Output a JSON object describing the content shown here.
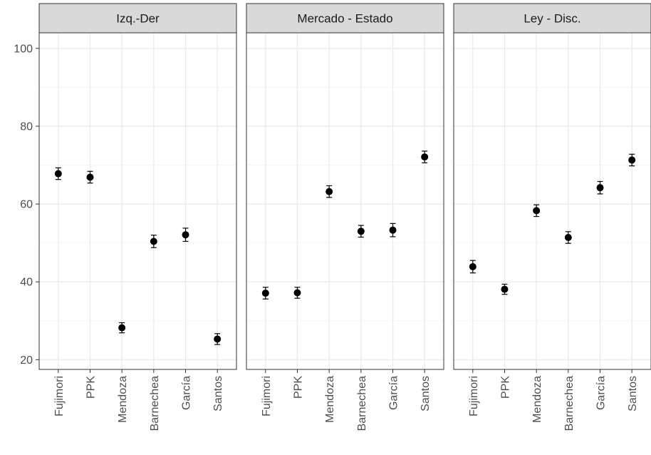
{
  "chart_data": {
    "type": "scatter",
    "error_bars": true,
    "facets": [
      "Izq.-Der",
      "Mercado - Estado",
      "Ley - Disc."
    ],
    "categories": [
      "Fujimori",
      "PPK",
      "Mendoza",
      "Barnechea",
      "García",
      "Santos"
    ],
    "ylim": [
      17.5,
      104
    ],
    "yticks": [
      20,
      40,
      60,
      80,
      100
    ],
    "grid": true,
    "panels": [
      {
        "facet": "Izq.-Der",
        "points": [
          {
            "x": "Fujimori",
            "y": 67.8,
            "lower": 66.3,
            "upper": 69.3
          },
          {
            "x": "PPK",
            "y": 66.9,
            "lower": 65.4,
            "upper": 68.4
          },
          {
            "x": "Mendoza",
            "y": 28.2,
            "lower": 26.9,
            "upper": 29.5
          },
          {
            "x": "Barnechea",
            "y": 50.4,
            "lower": 48.8,
            "upper": 52.0
          },
          {
            "x": "García",
            "y": 52.1,
            "lower": 50.4,
            "upper": 53.8
          },
          {
            "x": "Santos",
            "y": 25.3,
            "lower": 23.9,
            "upper": 26.7
          }
        ]
      },
      {
        "facet": "Mercado - Estado",
        "points": [
          {
            "x": "Fujimori",
            "y": 37.1,
            "lower": 35.6,
            "upper": 38.6
          },
          {
            "x": "PPK",
            "y": 37.2,
            "lower": 35.8,
            "upper": 38.6
          },
          {
            "x": "Mendoza",
            "y": 63.2,
            "lower": 61.7,
            "upper": 64.7
          },
          {
            "x": "Barnechea",
            "y": 53.0,
            "lower": 51.5,
            "upper": 54.5
          },
          {
            "x": "García",
            "y": 53.3,
            "lower": 51.6,
            "upper": 55.0
          },
          {
            "x": "Santos",
            "y": 72.1,
            "lower": 70.6,
            "upper": 73.6
          }
        ]
      },
      {
        "facet": "Ley - Disc.",
        "points": [
          {
            "x": "Fujimori",
            "y": 43.9,
            "lower": 42.3,
            "upper": 45.5
          },
          {
            "x": "PPK",
            "y": 38.1,
            "lower": 36.8,
            "upper": 39.4
          },
          {
            "x": "Mendoza",
            "y": 58.3,
            "lower": 56.8,
            "upper": 59.8
          },
          {
            "x": "Barnechea",
            "y": 51.4,
            "lower": 49.9,
            "upper": 52.9
          },
          {
            "x": "García",
            "y": 64.2,
            "lower": 62.6,
            "upper": 65.8
          },
          {
            "x": "Santos",
            "y": 71.3,
            "lower": 69.8,
            "upper": 72.8
          }
        ]
      }
    ],
    "colors": {
      "point": "#000000",
      "strip_fill": "#d9d9d9",
      "panel_border": "#333333",
      "grid_major": "#ebebeb",
      "grid_minor": "#f5f5f5",
      "tick_text": "#4d4d4d"
    }
  }
}
